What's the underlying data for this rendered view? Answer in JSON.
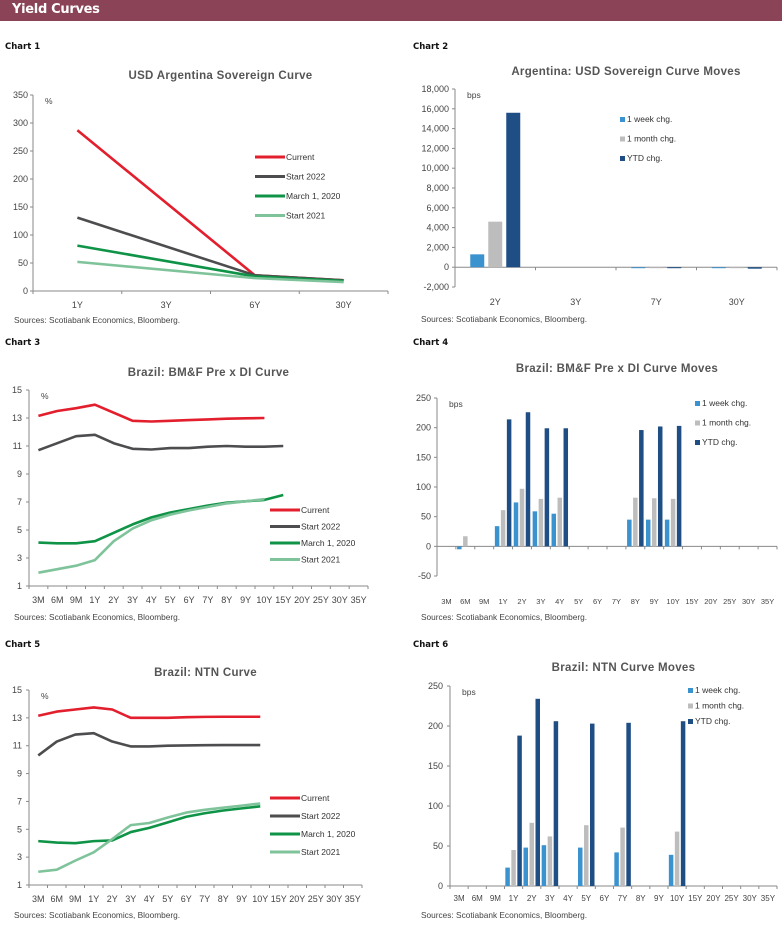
{
  "header": {
    "title": "Yield Curves",
    "color": "#8b4457"
  },
  "charts_meta": [
    {
      "label": "Chart 1"
    },
    {
      "label": "Chart 2"
    },
    {
      "label": "Chart 3"
    },
    {
      "label": "Chart 4"
    },
    {
      "label": "Chart 5"
    },
    {
      "label": "Chart 6"
    }
  ],
  "chart_data": [
    {
      "id": "chart1",
      "type": "line",
      "title": "USD Argentina Sovereign Curve",
      "unit": "%",
      "categories": [
        "1Y",
        "3Y",
        "6Y",
        "30Y"
      ],
      "ylim": [
        0,
        350
      ],
      "yticks": [
        0,
        50,
        100,
        150,
        200,
        250,
        300,
        350
      ],
      "legend_position": "right",
      "series": [
        {
          "name": "Current",
          "color": "#e31e2d",
          "values": [
            287,
            null,
            28,
            19
          ]
        },
        {
          "name": "Start 2022",
          "color": "#4d4d4f",
          "values": [
            131,
            null,
            28,
            19
          ]
        },
        {
          "name": "March 1, 2020",
          "color": "#0f9346",
          "values": [
            81,
            null,
            26,
            18
          ]
        },
        {
          "name": "Start 2021",
          "color": "#7fc39b",
          "values": [
            52,
            null,
            23,
            16
          ]
        }
      ],
      "source": "Sources: Scotiabank Economics, Bloomberg."
    },
    {
      "id": "chart2",
      "type": "bar",
      "title": "Argentina: USD Sovereign Curve Moves",
      "unit": "bps",
      "categories": [
        "2Y",
        "3Y",
        "7Y",
        "30Y"
      ],
      "ylim": [
        -2000,
        18000
      ],
      "yticks": [
        -2000,
        0,
        2000,
        4000,
        6000,
        8000,
        10000,
        12000,
        14000,
        16000,
        18000
      ],
      "legend_position": "top-right",
      "series": [
        {
          "name": "1 week chg.",
          "color": "#3a93cf",
          "values": [
            1300,
            0,
            -20,
            -20
          ]
        },
        {
          "name": "1 month chg.",
          "color": "#bdbdbd",
          "values": [
            4600,
            0,
            -30,
            -30
          ]
        },
        {
          "name": "YTD chg.",
          "color": "#1f4e85",
          "values": [
            15600,
            0,
            -40,
            -150
          ]
        }
      ],
      "source": "Sources: Scotiabank Economics, Bloomberg."
    },
    {
      "id": "chart3",
      "type": "line",
      "title": "Brazil: BM&F Pre x DI Curve",
      "unit": "%",
      "categories": [
        "3M",
        "6M",
        "9M",
        "1Y",
        "2Y",
        "3Y",
        "4Y",
        "5Y",
        "6Y",
        "7Y",
        "8Y",
        "9Y",
        "10Y",
        "15Y",
        "20Y",
        "25Y",
        "30Y",
        "35Y"
      ],
      "ylim": [
        1,
        15
      ],
      "yticks": [
        1,
        3,
        5,
        7,
        9,
        11,
        13,
        15
      ],
      "legend_position": "bottom-right",
      "series": [
        {
          "name": "Current",
          "color": "#e31e2d",
          "values": [
            13.15,
            13.5,
            13.7,
            13.95,
            null,
            12.8,
            12.75,
            12.8,
            12.85,
            12.9,
            12.95,
            12.98,
            13.0,
            null,
            null,
            null,
            null,
            null
          ]
        },
        {
          "name": "Start 2022",
          "color": "#4d4d4f",
          "values": [
            10.7,
            11.2,
            11.7,
            11.8,
            11.2,
            10.8,
            10.75,
            10.85,
            10.85,
            10.95,
            11.0,
            10.95,
            10.95,
            11.0,
            null,
            null,
            null,
            null
          ]
        },
        {
          "name": "March 1, 2020",
          "color": "#0f9346",
          "values": [
            4.1,
            4.05,
            4.05,
            4.2,
            4.8,
            5.4,
            5.9,
            6.25,
            6.5,
            6.75,
            6.95,
            7.05,
            7.15,
            7.5,
            null,
            null,
            null,
            null
          ]
        },
        {
          "name": "Start 2021",
          "color": "#7fc39b",
          "values": [
            1.95,
            2.2,
            2.45,
            2.85,
            4.2,
            5.1,
            5.7,
            6.1,
            6.4,
            6.65,
            6.9,
            7.05,
            7.2,
            null,
            null,
            null,
            null,
            null
          ]
        }
      ],
      "source": "Sources: Scotiabank Economics, Bloomberg."
    },
    {
      "id": "chart4",
      "type": "bar",
      "title": "Brazil: BM&F Pre x DI Curve Moves",
      "unit": "bps",
      "categories": [
        "3M",
        "6M",
        "9M",
        "1Y",
        "2Y",
        "3Y",
        "4Y",
        "5Y",
        "6Y",
        "7Y",
        "8Y",
        "9Y",
        "10Y",
        "15Y",
        "20Y",
        "25Y",
        "30Y",
        "35Y"
      ],
      "ylim": [
        -50,
        250
      ],
      "yticks": [
        -50,
        0,
        50,
        100,
        150,
        200,
        250
      ],
      "legend_position": "top-right",
      "series": [
        {
          "name": "1 week chg.",
          "color": "#3a93cf",
          "values": [
            null,
            -5,
            null,
            34,
            74,
            59,
            55,
            null,
            null,
            null,
            45,
            45,
            45,
            null,
            null,
            null,
            null,
            null
          ]
        },
        {
          "name": "1 month chg.",
          "color": "#bdbdbd",
          "values": [
            null,
            17,
            null,
            61,
            97,
            80,
            82,
            null,
            null,
            null,
            82,
            81,
            80,
            null,
            null,
            null,
            null,
            null
          ]
        },
        {
          "name": "YTD chg.",
          "color": "#1f4e85",
          "values": [
            null,
            null,
            null,
            214,
            226,
            199,
            199,
            null,
            null,
            null,
            196,
            202,
            203,
            null,
            null,
            null,
            null,
            null
          ]
        }
      ],
      "source": "Sources: Scotiabank Economics, Bloomberg."
    },
    {
      "id": "chart5",
      "type": "line",
      "title": "Brazil: NTN Curve",
      "unit": "%",
      "categories": [
        "3M",
        "6M",
        "9M",
        "1Y",
        "2Y",
        "3Y",
        "4Y",
        "5Y",
        "6Y",
        "7Y",
        "8Y",
        "9Y",
        "10Y",
        "15Y",
        "20Y",
        "25Y",
        "30Y",
        "35Y"
      ],
      "ylim": [
        1,
        15
      ],
      "yticks": [
        1,
        3,
        5,
        7,
        9,
        11,
        13,
        15
      ],
      "legend_position": "bottom-right",
      "series": [
        {
          "name": "Current",
          "color": "#e31e2d",
          "values": [
            13.15,
            13.45,
            13.6,
            13.75,
            13.6,
            13.0,
            13.0,
            13.0,
            13.05,
            13.07,
            13.08,
            13.08,
            13.08,
            null,
            null,
            null,
            null,
            null
          ]
        },
        {
          "name": "Start 2022",
          "color": "#4d4d4f",
          "values": [
            10.3,
            11.3,
            11.8,
            11.9,
            11.3,
            10.95,
            10.95,
            11.0,
            11.02,
            11.04,
            11.05,
            11.05,
            11.05,
            null,
            null,
            null,
            null,
            null
          ]
        },
        {
          "name": "March 1, 2020",
          "color": "#0f9346",
          "values": [
            4.15,
            4.05,
            4.0,
            4.15,
            4.2,
            4.8,
            5.1,
            5.5,
            5.9,
            6.15,
            6.35,
            6.5,
            6.65,
            null,
            null,
            null,
            null,
            null
          ]
        },
        {
          "name": "Start 2021",
          "color": "#7fc39b",
          "values": [
            1.95,
            2.1,
            2.75,
            3.35,
            4.3,
            5.3,
            5.45,
            5.85,
            6.2,
            6.4,
            6.55,
            6.7,
            6.85,
            null,
            null,
            null,
            null,
            null
          ]
        }
      ],
      "source": "Sources: Scotiabank Economics, Bloomberg."
    },
    {
      "id": "chart6",
      "type": "bar",
      "title": "Brazil: NTN Curve Moves",
      "unit": "bps",
      "categories": [
        "3M",
        "6M",
        "9M",
        "1Y",
        "2Y",
        "3Y",
        "4Y",
        "5Y",
        "6Y",
        "7Y",
        "8Y",
        "9Y",
        "10Y",
        "15Y",
        "20Y",
        "25Y",
        "30Y",
        "35Y"
      ],
      "ylim": [
        0,
        250
      ],
      "yticks": [
        0,
        50,
        100,
        150,
        200,
        250
      ],
      "legend_position": "top-right",
      "series": [
        {
          "name": "1 week chg.",
          "color": "#3a93cf",
          "values": [
            null,
            null,
            null,
            23,
            48,
            51,
            null,
            48,
            null,
            42,
            null,
            null,
            39,
            null,
            null,
            null,
            null,
            null
          ]
        },
        {
          "name": "1 month chg.",
          "color": "#bdbdbd",
          "values": [
            null,
            null,
            null,
            45,
            79,
            62,
            null,
            76,
            null,
            73,
            null,
            null,
            68,
            null,
            null,
            null,
            null,
            null
          ]
        },
        {
          "name": "YTD chg.",
          "color": "#1f4e85",
          "values": [
            null,
            null,
            null,
            188,
            234,
            206,
            null,
            203,
            null,
            204,
            null,
            null,
            206,
            null,
            null,
            null,
            null,
            null
          ]
        }
      ],
      "source": "Sources: Scotiabank Economics, Bloomberg."
    }
  ]
}
